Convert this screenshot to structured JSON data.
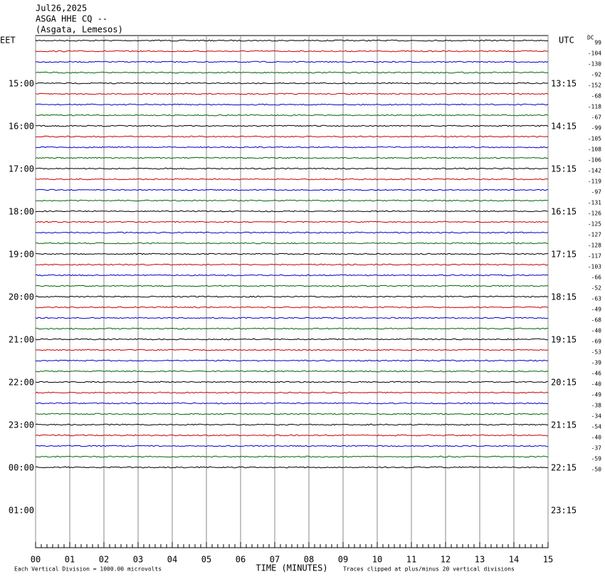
{
  "header": {
    "date": "Jul26,2025",
    "station": "ASGA HHE CQ --",
    "location": "(Asgata, Lemesos)"
  },
  "plot": {
    "left_label": "EET",
    "left_times": [
      "15:00",
      "16:00",
      "17:00",
      "18:00",
      "19:00",
      "20:00",
      "21:00",
      "22:00",
      "23:00",
      "00:00",
      "01:00"
    ],
    "right_label": "UTC",
    "right_times": [
      "13:15",
      "14:15",
      "15:15",
      "16:15",
      "17:15",
      "18:15",
      "19:15",
      "20:15",
      "21:15",
      "22:15",
      "23:15"
    ],
    "dc_label": "DC",
    "dc_offsets": [
      99,
      -104,
      -130,
      -92,
      -152,
      -68,
      -118,
      -67,
      -99,
      -105,
      -108,
      -106,
      -142,
      -119,
      -97,
      -131,
      -126,
      -125,
      -127,
      -128,
      -117,
      -103,
      -66,
      -52,
      -63,
      -49,
      -68,
      -40,
      -69,
      -53,
      -39,
      -46,
      -40,
      -49,
      -38,
      -34,
      -54,
      -40,
      -37,
      -59,
      -50
    ],
    "trace_colors": [
      "#000000",
      "#cc0000",
      "#0000cc",
      "#006600"
    ],
    "x_ticks": [
      "00",
      "01",
      "02",
      "03",
      "04",
      "05",
      "06",
      "07",
      "08",
      "09",
      "10",
      "11",
      "12",
      "13",
      "14",
      "15"
    ],
    "x_axis_label": "TIME (MINUTES)"
  },
  "footer": {
    "scale_note": "Each Vertical Division = 1000.00 microvolts",
    "clip_note": "Traces clipped at plus/minus 20 vertical divisions"
  }
}
